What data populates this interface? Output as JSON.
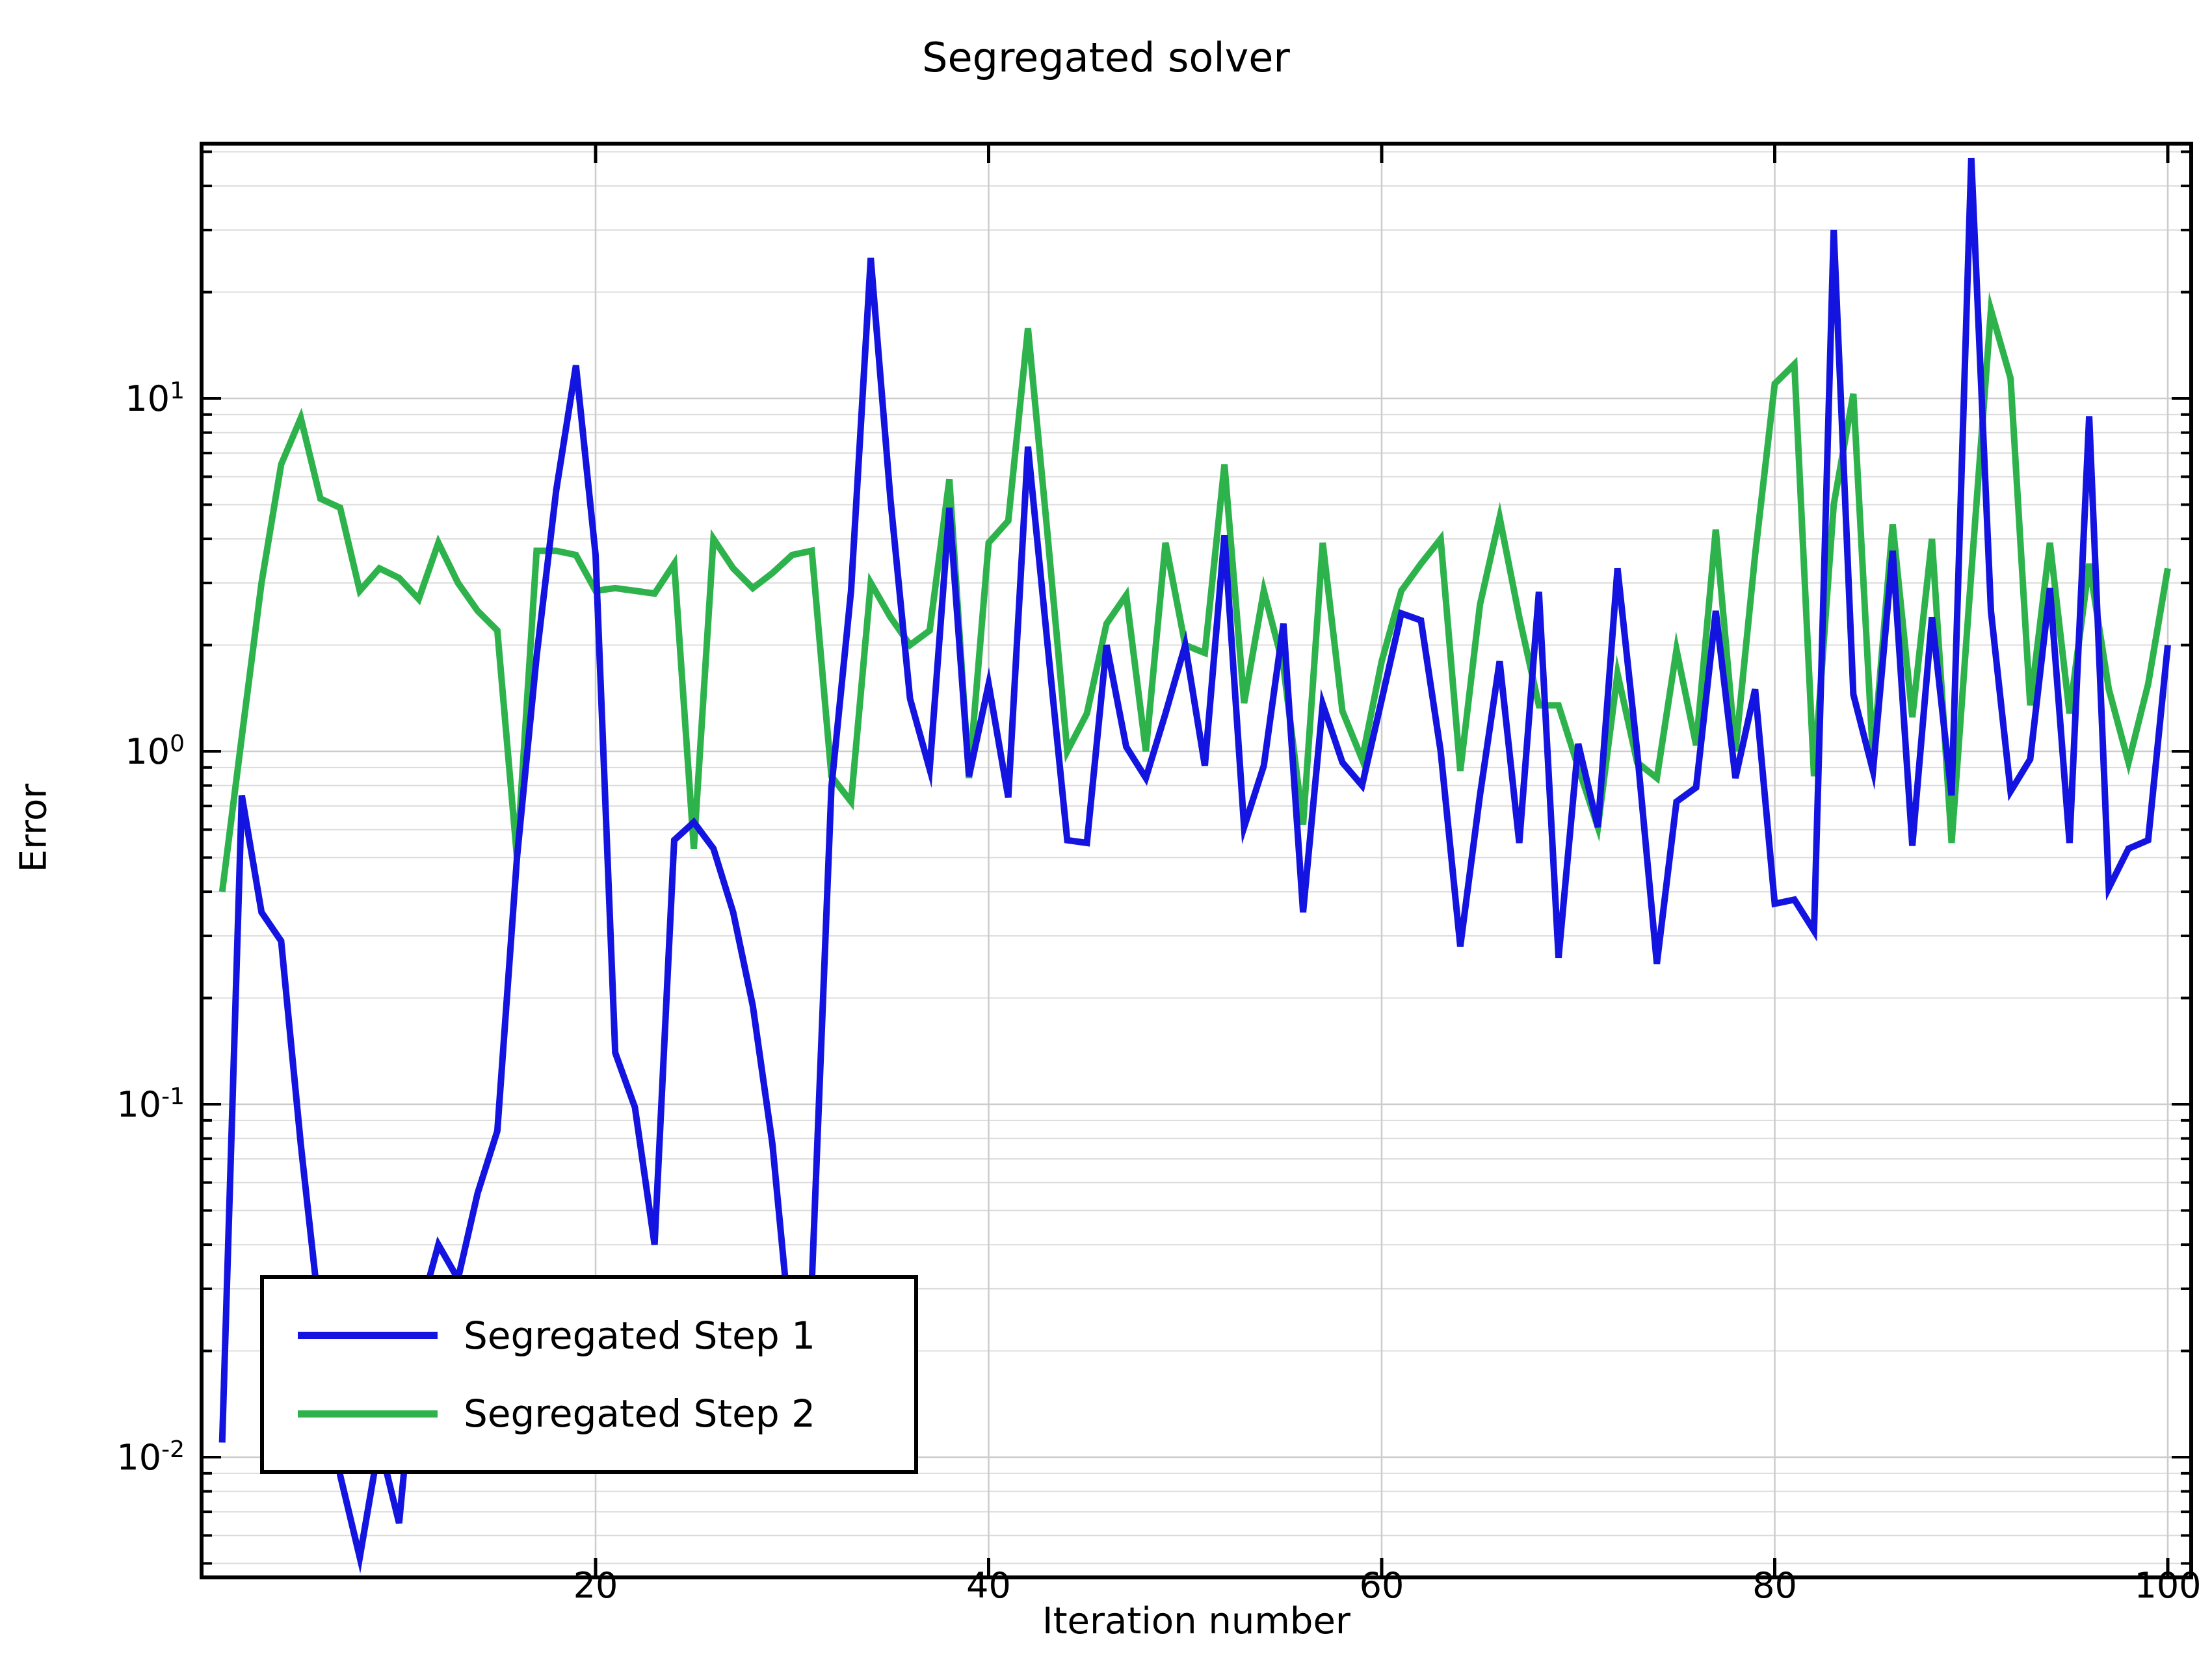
{
  "title": "Segregated solver",
  "axes": {
    "x_label": "Iteration number",
    "y_label": "Error",
    "x_ticks": [
      20,
      40,
      60,
      80,
      100
    ],
    "y_tick_exponents": [
      1,
      0,
      -1,
      -2
    ]
  },
  "legend": {
    "items": [
      {
        "label": "Segregated Step 1",
        "color": "#1414e0"
      },
      {
        "label": "Segregated Step 2",
        "color": "#2eb34c"
      }
    ]
  },
  "colors": {
    "step1": "#1414e0",
    "step2": "#2eb34c",
    "grid_minor": "#dcdcdc",
    "grid_major": "#cccccc",
    "axis": "#000000"
  },
  "chart_data": {
    "type": "line",
    "title": "Segregated solver",
    "xlabel": "Iteration number",
    "ylabel": "Error",
    "x_start": 1,
    "x_step": 1,
    "xlim": [
      0,
      101.3
    ],
    "ylim_log10": [
      -2.34,
      1.72
    ],
    "y_scale": "log",
    "grid": "log minor gridlines on, vertical gridlines at x multiples of 20",
    "legend_position": "lower left",
    "series": [
      {
        "name": "Segregated Step 1",
        "color": "#1414e0",
        "values": [
          0.011,
          0.75,
          0.35,
          0.29,
          0.077,
          0.024,
          0.0089,
          0.0052,
          0.011,
          0.0065,
          0.025,
          0.04,
          0.032,
          0.056,
          0.084,
          0.5,
          1.86,
          5.5,
          12.4,
          3.6,
          0.14,
          0.098,
          0.04,
          0.56,
          0.63,
          0.53,
          0.35,
          0.19,
          0.077,
          0.02,
          0.031,
          0.79,
          2.85,
          25,
          5.2,
          1.41,
          0.89,
          4.9,
          0.85,
          1.55,
          0.74,
          7.3,
          2,
          0.56,
          0.55,
          2,
          1.03,
          0.84,
          1.28,
          2,
          0.91,
          4.1,
          0.61,
          0.91,
          2.3,
          0.35,
          1.36,
          0.93,
          0.8,
          1.4,
          2.46,
          2.35,
          1,
          0.28,
          0.75,
          1.8,
          0.55,
          2.83,
          0.26,
          1.05,
          0.61,
          3.3,
          1,
          0.25,
          0.72,
          0.79,
          2.5,
          0.84,
          1.5,
          0.37,
          0.38,
          0.31,
          30,
          1.45,
          0.88,
          3.7,
          0.54,
          2.4,
          0.75,
          48,
          2.5,
          0.77,
          0.95,
          2.9,
          0.55,
          8.9,
          0.41,
          0.53,
          0.56,
          2
        ]
      },
      {
        "name": "Segregated Step 2",
        "color": "#2eb34c",
        "values": [
          0.4,
          1.1,
          3,
          6.5,
          8.8,
          5.2,
          4.9,
          2.85,
          3.3,
          3.1,
          2.7,
          3.9,
          3,
          2.5,
          2.2,
          0.5,
          3.7,
          3.7,
          3.6,
          2.85,
          2.9,
          2.85,
          2.8,
          3.4,
          0.53,
          4,
          3.3,
          2.9,
          3.2,
          3.6,
          3.7,
          0.85,
          0.72,
          3,
          2.4,
          2,
          2.2,
          5.9,
          0.84,
          3.9,
          4.5,
          15.8,
          4.1,
          1,
          1.28,
          2.3,
          2.77,
          1,
          3.9,
          2,
          1.9,
          6.5,
          1.37,
          2.85,
          1.74,
          0.62,
          3.9,
          1.3,
          0.95,
          1.8,
          2.85,
          3.4,
          4,
          0.88,
          2.6,
          4.6,
          2.4,
          1.35,
          1.35,
          0.9,
          0.61,
          1.66,
          0.93,
          0.84,
          1.94,
          1.04,
          4.25,
          1,
          3.6,
          11,
          12.5,
          0.85,
          5,
          10.3,
          0.95,
          4.4,
          1.25,
          4,
          0.55,
          3.2,
          17.8,
          11.4,
          1.35,
          3.9,
          1.28,
          3.4,
          1.5,
          0.93,
          1.55,
          3.3
        ]
      }
    ]
  }
}
